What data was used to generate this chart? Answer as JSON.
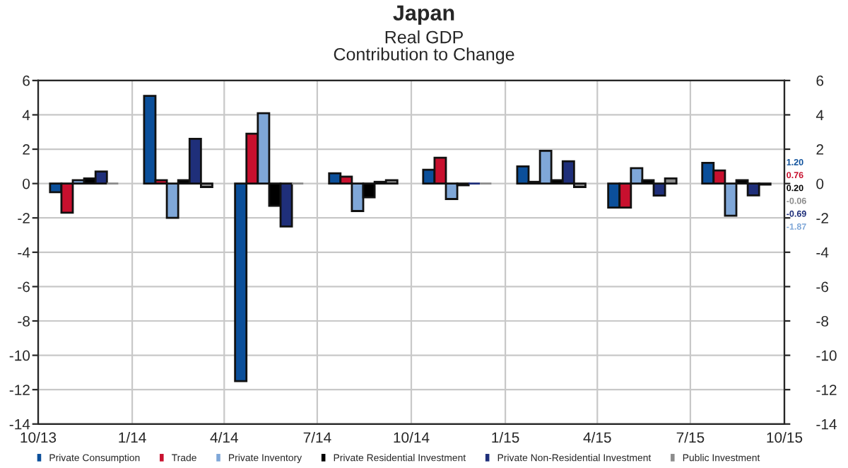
{
  "chart_data": {
    "type": "bar",
    "title": "Japan",
    "subtitle": "Real GDP\nContribution to Change",
    "x": [
      "2013-11-15",
      "2014-02-15",
      "2014-05-15",
      "2014-08-15",
      "2014-11-15",
      "2015-02-15",
      "2015-05-15",
      "2015-08-15"
    ],
    "xlim": [
      "2013-10",
      "2015-10"
    ],
    "xticks": [
      {
        "value": "2013-10",
        "label": "10/13"
      },
      {
        "value": "2014-01",
        "label": "1/14"
      },
      {
        "value": "2014-04",
        "label": "4/14"
      },
      {
        "value": "2014-07",
        "label": "7/14"
      },
      {
        "value": "2014-10",
        "label": "10/14"
      },
      {
        "value": "2015-01",
        "label": "1/15"
      },
      {
        "value": "2015-04",
        "label": "4/15"
      },
      {
        "value": "2015-07",
        "label": "7/15"
      },
      {
        "value": "2015-10",
        "label": "10/15"
      }
    ],
    "ylim": [
      -14,
      6
    ],
    "yticks": [
      -14,
      -12,
      -10,
      -8,
      -6,
      -4,
      -2,
      0,
      2,
      4,
      6
    ],
    "y2lim": [
      -14,
      6
    ],
    "y2ticks": [
      -14,
      -12,
      -10,
      -8,
      -6,
      -4,
      -2,
      0,
      2,
      4,
      6
    ],
    "grid": true,
    "legend": "bottom",
    "annotations": [
      "1.20",
      "0.76",
      "0.20",
      "-0.06",
      "-0.69",
      "-1.87"
    ],
    "series": [
      {
        "name": "Private Consumption",
        "color": "#0b4f9a",
        "values": [
          -0.5,
          5.1,
          -11.5,
          0.6,
          0.8,
          1.0,
          -1.4,
          1.2
        ]
      },
      {
        "name": "Trade",
        "color": "#c8102e",
        "values": [
          -1.7,
          0.2,
          2.9,
          0.4,
          1.5,
          0.1,
          -1.4,
          0.76
        ]
      },
      {
        "name": "Private Inventory",
        "color": "#7fa7d8",
        "values": [
          0.2,
          -2.0,
          4.1,
          -1.6,
          -0.9,
          1.9,
          0.9,
          -1.87
        ]
      },
      {
        "name": "Private Residential Investment",
        "color": "#000000",
        "values": [
          0.3,
          0.2,
          -1.3,
          -0.8,
          -0.1,
          0.2,
          0.2,
          0.2
        ]
      },
      {
        "name": "Private Non-Residential Investment",
        "color": "#1f2f7a",
        "values": [
          0.7,
          2.6,
          -2.5,
          0.1,
          0.0,
          1.3,
          -0.7,
          -0.69
        ]
      },
      {
        "name": "Public Investment",
        "color": "#8c8c8c",
        "values": [
          0.0,
          -0.2,
          0.0,
          0.2,
          0.0,
          -0.2,
          0.3,
          -0.06
        ]
      }
    ]
  }
}
